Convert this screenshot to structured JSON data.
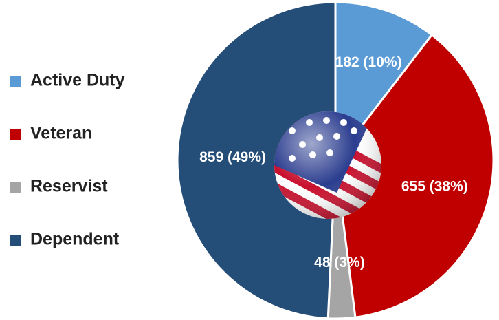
{
  "chart_data": {
    "type": "pie",
    "categories": [
      "Active Duty",
      "Veteran",
      "Reservist",
      "Dependent"
    ],
    "values": [
      182,
      655,
      48,
      859
    ],
    "value_labels": [
      "182 (10%)",
      "655 (38%)",
      "48 (3%)",
      "859 (49%)"
    ],
    "colors": [
      "#5b9bd5",
      "#c00000",
      "#a5a5a5",
      "#244d78"
    ],
    "legend": "left"
  }
}
